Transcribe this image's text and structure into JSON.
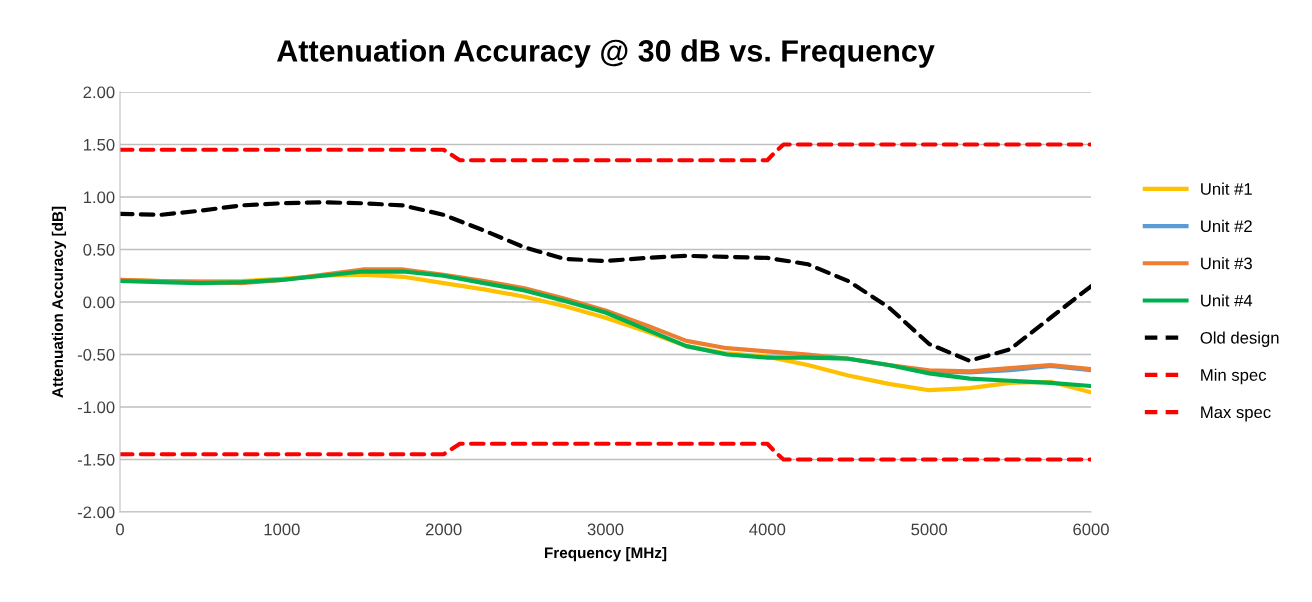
{
  "chart_data": {
    "type": "line",
    "title": "Attenuation Accuracy @ 30 dB vs. Frequency",
    "xlabel": "Frequency [MHz]",
    "ylabel": "Attenuation Accuracy [dB]",
    "x": [
      0,
      250,
      500,
      750,
      1000,
      1250,
      1500,
      1750,
      2000,
      2250,
      2500,
      2750,
      3000,
      3250,
      3500,
      3750,
      4000,
      4250,
      4500,
      4750,
      5000,
      5250,
      5500,
      5750,
      6000
    ],
    "series": [
      {
        "name": "Unit #1",
        "color": "#ffc000",
        "line_style": "solid",
        "values": [
          0.21,
          0.2,
          0.2,
          0.2,
          0.22,
          0.25,
          0.26,
          0.24,
          0.18,
          0.12,
          0.05,
          -0.04,
          -0.15,
          -0.28,
          -0.42,
          -0.49,
          -0.52,
          -0.6,
          -0.7,
          -0.78,
          -0.84,
          -0.82,
          -0.77,
          -0.76,
          -0.86
        ]
      },
      {
        "name": "Unit #2",
        "color": "#5b9bd5",
        "line_style": "solid",
        "values": [
          null,
          null,
          null,
          null,
          null,
          null,
          null,
          null,
          null,
          null,
          null,
          null,
          null,
          null,
          null,
          null,
          null,
          null,
          null,
          null,
          -0.66,
          -0.67,
          -0.65,
          -0.61,
          -0.65
        ]
      },
      {
        "name": "Unit #3",
        "color": "#ed7d31",
        "line_style": "solid",
        "values": [
          0.21,
          0.2,
          0.19,
          0.18,
          0.21,
          0.26,
          0.31,
          0.31,
          0.26,
          0.2,
          0.13,
          0.03,
          -0.08,
          -0.22,
          -0.37,
          -0.44,
          -0.47,
          -0.5,
          -0.54,
          -0.6,
          -0.65,
          -0.66,
          -0.63,
          -0.6,
          -0.64
        ]
      },
      {
        "name": "Unit #4",
        "color": "#00b050",
        "line_style": "solid",
        "values": [
          0.2,
          0.19,
          0.18,
          0.19,
          0.21,
          0.25,
          0.29,
          0.29,
          0.25,
          0.18,
          0.11,
          0.01,
          -0.1,
          -0.26,
          -0.42,
          -0.5,
          -0.53,
          -0.53,
          -0.54,
          -0.6,
          -0.68,
          -0.73,
          -0.75,
          -0.77,
          -0.8
        ]
      },
      {
        "name": "Old design",
        "color": "#000000",
        "line_style": "dashed",
        "values": [
          0.84,
          0.83,
          0.87,
          0.92,
          0.94,
          0.95,
          0.94,
          0.92,
          0.83,
          0.68,
          0.52,
          0.41,
          0.39,
          0.42,
          0.44,
          0.43,
          0.42,
          0.36,
          0.2,
          -0.05,
          -0.4,
          -0.56,
          -0.45,
          -0.15,
          0.15
        ]
      },
      {
        "name": "Min spec",
        "color": "#ff0000",
        "line_style": "dashed",
        "x": [
          0,
          1000,
          2000,
          2050,
          2100,
          3000,
          4000,
          4050,
          4100,
          5000,
          6000
        ],
        "values": [
          -1.45,
          -1.45,
          -1.45,
          -1.4,
          -1.35,
          -1.35,
          -1.35,
          -1.43,
          -1.5,
          -1.5,
          -1.5
        ]
      },
      {
        "name": "Max spec",
        "color": "#ff0000",
        "line_style": "dashed",
        "x": [
          0,
          1000,
          2000,
          2050,
          2100,
          3000,
          4000,
          4050,
          4100,
          5000,
          6000
        ],
        "values": [
          1.45,
          1.45,
          1.45,
          1.4,
          1.35,
          1.35,
          1.35,
          1.43,
          1.5,
          1.5,
          1.5
        ]
      }
    ],
    "xlim": [
      0,
      6000
    ],
    "xticks": [
      0,
      1000,
      2000,
      3000,
      4000,
      5000,
      6000
    ],
    "ylim": [
      -2,
      2
    ],
    "yticks": [
      {
        "value": -2,
        "label": "-2.00"
      },
      {
        "value": -1.5,
        "label": "-1.50"
      },
      {
        "value": -1,
        "label": "-1.00"
      },
      {
        "value": -0.5,
        "label": "-0.50"
      },
      {
        "value": 0,
        "label": "0.00"
      },
      {
        "value": 0.5,
        "label": "0.50"
      },
      {
        "value": 1,
        "label": "1.00"
      },
      {
        "value": 1.5,
        "label": "1.50"
      },
      {
        "value": 2,
        "label": "2.00"
      }
    ],
    "grid": "y",
    "legend": "right",
    "marker": "none"
  }
}
